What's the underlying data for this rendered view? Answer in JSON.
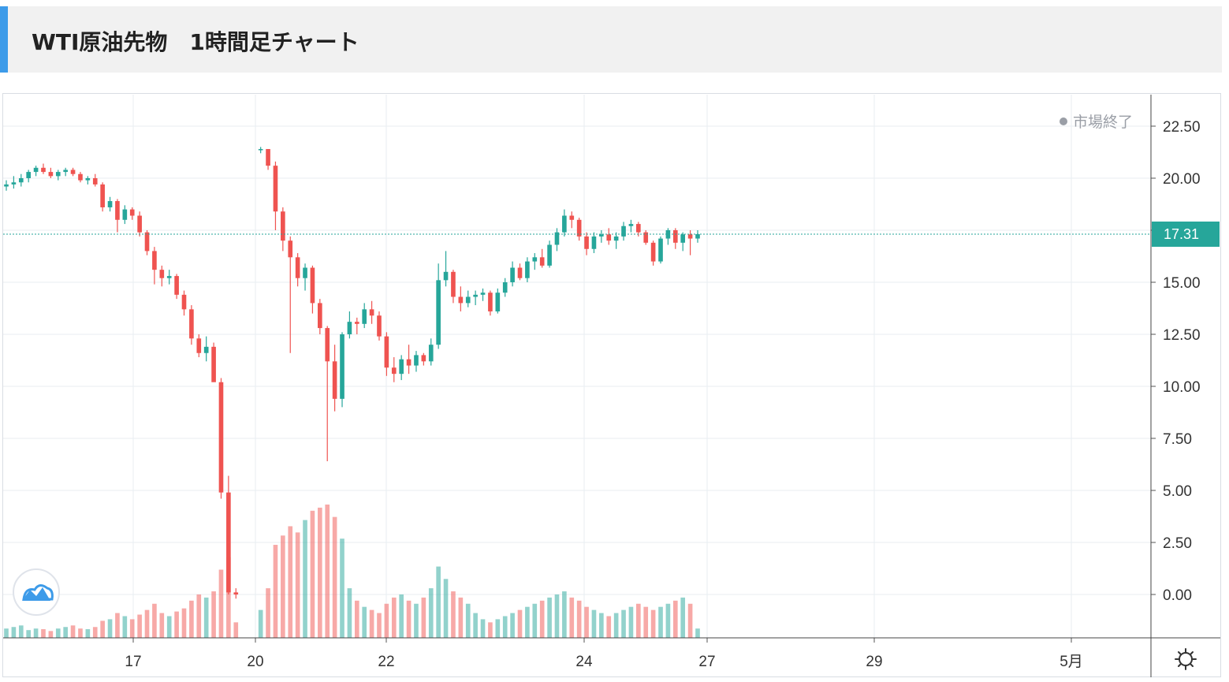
{
  "header": {
    "title": "WTI原油先物　1時間足チャート"
  },
  "status": {
    "market_closed": "市場終了"
  },
  "colors": {
    "up": "#26a69a",
    "down": "#ef5350",
    "accent": "#3d9be9",
    "last_price": "#26a69a",
    "grid": "#e9edf2"
  },
  "icons": {
    "logo": "tradingview-cloud-icon",
    "settings": "gear-icon"
  },
  "chart_data": {
    "type": "candlestick",
    "title": "",
    "xlabel": "",
    "ylabel": "",
    "ylim": [
      -2,
      23.5
    ],
    "y_ticks": [
      "22.50",
      "20.00",
      "17.50",
      "15.00",
      "12.50",
      "10.00",
      "7.50",
      "5.00",
      "2.50",
      "0.00"
    ],
    "x_ticks": [
      "17",
      "20",
      "22",
      "24",
      "27",
      "29",
      "5月"
    ],
    "last_price": 17.31,
    "last_price_label": "17.31",
    "grid": true,
    "ohlc": [
      [
        19.6,
        19.9,
        19.4,
        19.7
      ],
      [
        19.7,
        20.1,
        19.5,
        19.8
      ],
      [
        19.8,
        20.2,
        19.6,
        20.0
      ],
      [
        20.0,
        20.4,
        19.8,
        20.3
      ],
      [
        20.3,
        20.6,
        20.1,
        20.5
      ],
      [
        20.5,
        20.7,
        20.2,
        20.3
      ],
      [
        20.3,
        20.5,
        20.0,
        20.1
      ],
      [
        20.1,
        20.4,
        19.9,
        20.3
      ],
      [
        20.3,
        20.5,
        20.1,
        20.4
      ],
      [
        20.4,
        20.5,
        20.1,
        20.2
      ],
      [
        20.2,
        20.3,
        19.8,
        19.9
      ],
      [
        19.9,
        20.1,
        19.7,
        20.0
      ],
      [
        20.0,
        20.2,
        19.6,
        19.7
      ],
      [
        19.7,
        19.8,
        18.4,
        18.6
      ],
      [
        18.6,
        19.1,
        18.4,
        18.9
      ],
      [
        18.9,
        19.0,
        17.4,
        18.0
      ],
      [
        18.0,
        18.7,
        17.8,
        18.5
      ],
      [
        18.5,
        18.6,
        18.0,
        18.2
      ],
      [
        18.2,
        18.4,
        17.2,
        17.4
      ],
      [
        17.4,
        17.5,
        16.3,
        16.5
      ],
      [
        16.5,
        16.7,
        14.9,
        15.6
      ],
      [
        15.6,
        15.8,
        14.8,
        15.2
      ],
      [
        15.2,
        15.6,
        14.9,
        15.3
      ],
      [
        15.3,
        15.4,
        14.2,
        14.4
      ],
      [
        14.4,
        14.6,
        13.4,
        13.7
      ],
      [
        13.7,
        13.9,
        12.0,
        12.3
      ],
      [
        12.3,
        12.5,
        11.4,
        11.6
      ],
      [
        11.6,
        12.4,
        11.2,
        11.9
      ],
      [
        11.9,
        12.1,
        10.3,
        10.2
      ],
      [
        10.2,
        10.4,
        4.6,
        4.9
      ],
      [
        4.9,
        5.7,
        0.0,
        0.1
      ],
      [
        0.1,
        0.3,
        -0.2,
        0.0
      ],
      [
        21.4,
        21.5,
        21.2,
        21.4
      ],
      [
        21.4,
        21.4,
        20.4,
        20.6
      ],
      [
        20.6,
        20.8,
        17.5,
        18.4
      ],
      [
        18.4,
        18.6,
        16.5,
        17.0
      ],
      [
        17.0,
        17.2,
        11.6,
        16.2
      ],
      [
        16.2,
        16.4,
        14.8,
        15.2
      ],
      [
        15.2,
        15.9,
        14.6,
        15.7
      ],
      [
        15.7,
        15.8,
        13.5,
        14.0
      ],
      [
        14.0,
        14.2,
        12.5,
        12.8
      ],
      [
        12.8,
        12.9,
        6.4,
        11.2
      ],
      [
        11.2,
        12.0,
        8.8,
        9.4
      ],
      [
        9.4,
        12.6,
        9.0,
        12.5
      ],
      [
        12.5,
        13.6,
        12.3,
        13.1
      ],
      [
        13.1,
        13.3,
        12.5,
        13.0
      ],
      [
        13.0,
        14.0,
        12.8,
        13.7
      ],
      [
        13.7,
        14.1,
        13.0,
        13.4
      ],
      [
        13.4,
        13.6,
        12.2,
        12.4
      ],
      [
        12.4,
        12.6,
        10.5,
        10.9
      ],
      [
        10.9,
        11.4,
        10.2,
        10.6
      ],
      [
        10.6,
        11.5,
        10.3,
        11.3
      ],
      [
        11.3,
        12.0,
        10.6,
        11.0
      ],
      [
        11.0,
        11.7,
        10.7,
        11.5
      ],
      [
        11.5,
        11.6,
        11.0,
        11.2
      ],
      [
        11.2,
        12.3,
        11.0,
        12.0
      ],
      [
        12.0,
        15.9,
        11.8,
        15.1
      ],
      [
        15.1,
        16.5,
        14.8,
        15.5
      ],
      [
        15.5,
        15.6,
        14.0,
        14.3
      ],
      [
        14.3,
        14.8,
        13.6,
        14.0
      ],
      [
        14.0,
        14.6,
        13.8,
        14.3
      ],
      [
        14.3,
        14.6,
        13.9,
        14.4
      ],
      [
        14.4,
        14.7,
        14.1,
        14.5
      ],
      [
        14.5,
        14.6,
        13.4,
        13.6
      ],
      [
        13.6,
        14.7,
        13.5,
        14.5
      ],
      [
        14.5,
        15.2,
        14.3,
        15.0
      ],
      [
        15.0,
        16.0,
        14.8,
        15.7
      ],
      [
        15.7,
        15.9,
        15.1,
        15.2
      ],
      [
        15.2,
        16.2,
        15.0,
        16.0
      ],
      [
        16.0,
        16.4,
        15.6,
        16.2
      ],
      [
        16.2,
        16.6,
        15.7,
        15.8
      ],
      [
        15.8,
        17.0,
        15.7,
        16.8
      ],
      [
        16.8,
        17.6,
        16.5,
        17.4
      ],
      [
        17.4,
        18.5,
        17.2,
        18.2
      ],
      [
        18.2,
        18.4,
        17.6,
        18.0
      ],
      [
        18.0,
        18.1,
        17.0,
        17.2
      ],
      [
        17.2,
        17.4,
        16.3,
        16.6
      ],
      [
        16.6,
        17.4,
        16.4,
        17.2
      ],
      [
        17.2,
        17.5,
        16.9,
        17.3
      ],
      [
        17.3,
        17.6,
        16.8,
        17.0
      ],
      [
        17.0,
        17.4,
        16.6,
        17.2
      ],
      [
        17.2,
        17.9,
        17.0,
        17.7
      ],
      [
        17.7,
        18.0,
        17.4,
        17.8
      ],
      [
        17.8,
        17.9,
        17.2,
        17.4
      ],
      [
        17.4,
        17.5,
        16.8,
        16.9
      ],
      [
        16.9,
        17.0,
        15.8,
        16.0
      ],
      [
        16.0,
        17.2,
        15.9,
        17.1
      ],
      [
        17.1,
        17.6,
        16.8,
        17.5
      ],
      [
        17.5,
        17.6,
        16.6,
        16.9
      ],
      [
        16.9,
        17.4,
        16.5,
        17.3
      ],
      [
        17.3,
        17.5,
        16.3,
        17.1
      ],
      [
        17.1,
        17.5,
        16.9,
        17.31
      ]
    ],
    "volume": [
      0.3,
      0.35,
      0.4,
      0.25,
      0.3,
      0.28,
      0.22,
      0.3,
      0.35,
      0.4,
      0.3,
      0.28,
      0.35,
      0.55,
      0.6,
      0.8,
      0.7,
      0.6,
      0.75,
      0.9,
      1.1,
      0.8,
      0.7,
      0.85,
      0.95,
      1.2,
      1.4,
      1.3,
      1.5,
      2.2,
      2.6,
      0.5,
      0.9,
      1.6,
      3.0,
      3.3,
      3.6,
      3.4,
      3.8,
      4.1,
      4.2,
      4.3,
      3.9,
      3.2,
      1.6,
      1.2,
      1.0,
      0.9,
      0.8,
      1.1,
      1.3,
      1.4,
      1.2,
      1.1,
      1.3,
      1.6,
      2.3,
      1.9,
      1.5,
      1.3,
      1.1,
      0.8,
      0.6,
      0.5,
      0.6,
      0.7,
      0.8,
      0.9,
      1.0,
      1.1,
      1.2,
      1.3,
      1.4,
      1.5,
      1.3,
      1.2,
      1.0,
      0.9,
      0.8,
      0.7,
      0.8,
      0.9,
      1.0,
      1.1,
      1.0,
      0.9,
      1.0,
      1.1,
      1.2,
      1.3,
      1.1,
      0.3
    ]
  }
}
